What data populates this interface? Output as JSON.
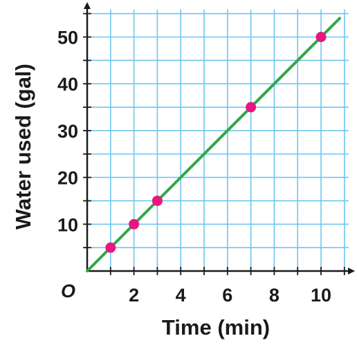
{
  "chart_data": {
    "type": "scatter",
    "xlabel": "Time (min)",
    "ylabel": "Water used (gal)",
    "origin_label": "O",
    "xlim": [
      0,
      11
    ],
    "ylim": [
      0,
      55
    ],
    "x_ticks": [
      2,
      4,
      6,
      8,
      10
    ],
    "x_tick_labels": [
      "2",
      "4",
      "6",
      "8",
      "10"
    ],
    "y_ticks": [
      10,
      20,
      30,
      40,
      50
    ],
    "y_tick_labels": [
      "10",
      "20",
      "30",
      "40",
      "50"
    ],
    "grid": true,
    "grid_color": "#6ec6ef",
    "points": [
      {
        "x": 1,
        "y": 5
      },
      {
        "x": 2,
        "y": 10
      },
      {
        "x": 3,
        "y": 15
      },
      {
        "x": 7,
        "y": 35
      },
      {
        "x": 10,
        "y": 50
      }
    ],
    "point_color": "#e8177f",
    "line": {
      "slope": 5,
      "intercept": 0,
      "x_end": 10.8,
      "color": "#2ea84a"
    }
  }
}
